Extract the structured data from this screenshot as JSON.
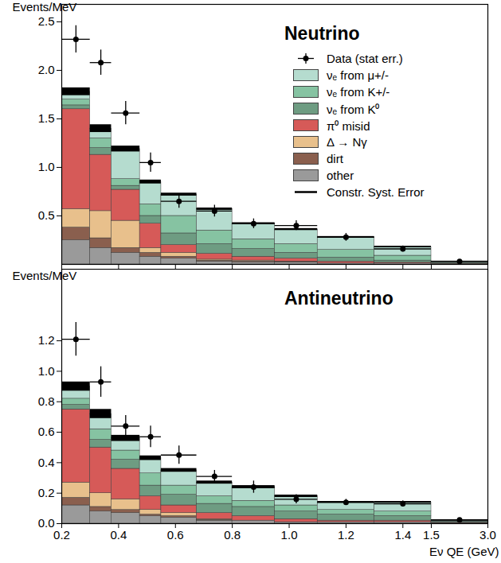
{
  "chart_data": [
    {
      "type": "bar",
      "title": "Neutrino",
      "stacked": true,
      "legend": "top-right",
      "tick_labels": "y",
      "ylabel": "Events/MeV",
      "bins": [
        0.2,
        0.3,
        0.375,
        0.475,
        0.55,
        0.675,
        0.8,
        0.95,
        1.1,
        1.3,
        1.5,
        3.0
      ],
      "xlim": [
        0.2,
        3.0
      ],
      "xticks": [
        0.2,
        0.4,
        0.6,
        0.8,
        {
          "value": 1,
          "label": "1.0"
        },
        1.2,
        1.4,
        1.5,
        {
          "value": 3,
          "label": "3.0"
        }
      ],
      "ylim": [
        0,
        2.68
      ],
      "yticks": [
        0.5,
        {
          "value": 1,
          "label": "1.0"
        },
        1.5,
        {
          "value": 2,
          "label": "2.0"
        },
        2.5
      ],
      "series": [
        {
          "name": "νₑ from μ+/-",
          "color": "#b5dccf",
          "values": [
            0.08,
            0.1,
            0.31,
            0.23,
            0.22,
            0.22,
            0.16,
            0.15,
            0.13,
            0.09,
            0.01
          ]
        },
        {
          "name": "νₑ from K+/-",
          "color": "#86c3a2",
          "values": [
            0.06,
            0.1,
            0.07,
            0.12,
            0.18,
            0.14,
            0.1,
            0.09,
            0.08,
            0.05,
            0.008
          ]
        },
        {
          "name": "νₑ from K⁰",
          "color": "#6e9c82",
          "values": [
            0.04,
            0.07,
            0.04,
            0.08,
            0.12,
            0.1,
            0.08,
            0.06,
            0.04,
            0.02,
            0.006
          ]
        },
        {
          "name": "π⁰ misid",
          "color": "#d65a58",
          "values": [
            1.03,
            0.58,
            0.32,
            0.25,
            0.08,
            0.06,
            0.04,
            0.03,
            0.02,
            0.01,
            0.003
          ]
        },
        {
          "name": "Δ → Nγ",
          "color": "#e8c08c",
          "values": [
            0.19,
            0.28,
            0.28,
            0.05,
            0.04,
            0.01,
            0.01,
            0.005,
            0,
            0,
            0
          ]
        },
        {
          "name": "dirt",
          "color": "#8a5f4e",
          "values": [
            0.13,
            0.1,
            0.05,
            0.04,
            0.02,
            0.01,
            0.01,
            0.005,
            0,
            0,
            0
          ]
        },
        {
          "name": "other",
          "color": "#9a9a9a",
          "values": [
            0.25,
            0.17,
            0.12,
            0.08,
            0.06,
            0.03,
            0.02,
            0.02,
            0.01,
            0.01,
            0.004
          ]
        }
      ],
      "points": {
        "name": "Data (stat err.)",
        "color": "#000000",
        "values": [
          2.32,
          2.08,
          1.56,
          1.05,
          0.65,
          0.55,
          0.42,
          0.4,
          0.28,
          0.16,
          0.03
        ],
        "errors": [
          0.14,
          0.13,
          0.12,
          0.1,
          0.07,
          0.06,
          0.05,
          0.05,
          0.04,
          0.03,
          0.005
        ]
      },
      "syst": {
        "name": "Constr. Syst. Error",
        "color": "#000000",
        "values": [
          0.04,
          0.04,
          0.03,
          0.02,
          0.015,
          0.012,
          0.01,
          0.01,
          0.008,
          0.008,
          0.003
        ]
      }
    },
    {
      "type": "bar",
      "title": "Antineutrino",
      "stacked": true,
      "ylabel": "Events/MeV",
      "xlabel": "Eν QE (GeV)",
      "bins": [
        0.2,
        0.3,
        0.375,
        0.475,
        0.55,
        0.675,
        0.8,
        0.95,
        1.1,
        1.3,
        1.5,
        3.0
      ],
      "xlim": [
        0.2,
        3.0
      ],
      "xticks": [
        0.2,
        0.4,
        0.6,
        0.8,
        {
          "value": 1,
          "label": "1.0"
        },
        1.2,
        1.4,
        1.5,
        {
          "value": 3,
          "label": "3.0"
        }
      ],
      "ylim": [
        0,
        1.67
      ],
      "yticks": [
        {
          "value": 0,
          "label": "0.0"
        },
        0.2,
        0.4,
        0.6,
        0.8,
        {
          "value": 1,
          "label": "1.0"
        },
        1.2
      ],
      "series": [
        {
          "name": "νₑ from μ+/-",
          "color": "#b5dccf",
          "values": [
            0.08,
            0.1,
            0.08,
            0.1,
            0.1,
            0.09,
            0.09,
            0.06,
            0.05,
            0.06,
            0.006
          ]
        },
        {
          "name": "νₑ from K+/-",
          "color": "#86c3a2",
          "values": [
            0.04,
            0.07,
            0.06,
            0.08,
            0.06,
            0.05,
            0.04,
            0.04,
            0.03,
            0.03,
            0.004
          ]
        },
        {
          "name": "νₑ from K⁰",
          "color": "#6e9c82",
          "values": [
            0.03,
            0.05,
            0.06,
            0.07,
            0.07,
            0.06,
            0.06,
            0.05,
            0.04,
            0.03,
            0.005
          ]
        },
        {
          "name": "π⁰ misid",
          "color": "#d65a58",
          "values": [
            0.48,
            0.3,
            0.2,
            0.09,
            0.05,
            0.04,
            0.03,
            0.02,
            0.01,
            0.01,
            0.002
          ]
        },
        {
          "name": "Δ → Nγ",
          "color": "#e8c08c",
          "values": [
            0.1,
            0.09,
            0.07,
            0.03,
            0.02,
            0.005,
            0,
            0,
            0,
            0,
            0
          ]
        },
        {
          "name": "dirt",
          "color": "#8a5f4e",
          "values": [
            0.05,
            0.03,
            0.02,
            0.01,
            0.01,
            0.005,
            0,
            0,
            0,
            0,
            0
          ]
        },
        {
          "name": "other",
          "color": "#9a9a9a",
          "values": [
            0.12,
            0.08,
            0.07,
            0.05,
            0.04,
            0.02,
            0.02,
            0.01,
            0.01,
            0.01,
            0.003
          ]
        }
      ],
      "points": {
        "name": "Data (stat err.)",
        "color": "#000000",
        "values": [
          1.21,
          0.93,
          0.64,
          0.57,
          0.45,
          0.31,
          0.24,
          0.16,
          0.14,
          0.13,
          0.025
        ],
        "errors": [
          0.11,
          0.1,
          0.07,
          0.07,
          0.06,
          0.04,
          0.04,
          0.03,
          0.02,
          0.02,
          0.005
        ]
      },
      "syst": {
        "name": "Constr. Syst. Error",
        "color": "#000000",
        "values": [
          0.03,
          0.03,
          0.02,
          0.015,
          0.012,
          0.01,
          0.01,
          0.008,
          0.006,
          0.006,
          0.003
        ]
      }
    }
  ]
}
